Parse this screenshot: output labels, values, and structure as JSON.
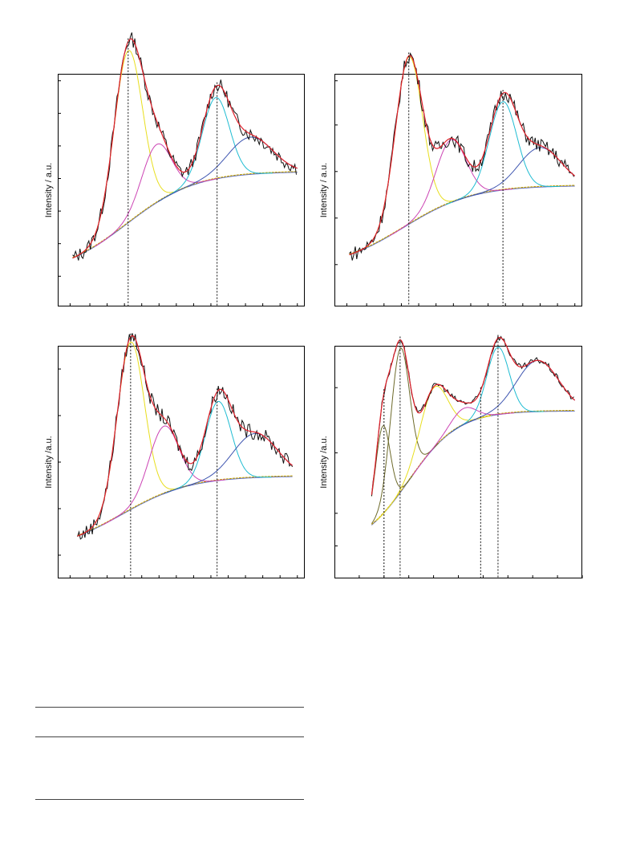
{
  "colors": {
    "raw": "#111111",
    "fit": "#e0202a",
    "baseline": "#5a6cc8",
    "baseline_alt": "#c8a400",
    "yellow": "#e8de1e",
    "magenta": "#cc44b4",
    "cyan": "#1fbcd2",
    "blue": "#3e55b0",
    "olive": "#6d6a2a",
    "axis": "#000000"
  },
  "panels": [
    {
      "ylabel": "Intensity / a.u.",
      "chart_data": {
        "type": "line",
        "xlim": [
          0,
          100
        ],
        "ylim": [
          0,
          100
        ],
        "xticks": [
          5,
          13,
          20,
          27,
          34,
          41,
          48,
          55,
          62,
          69,
          76,
          83,
          90,
          97
        ],
        "yticks": [
          13,
          27,
          41,
          55,
          69,
          83,
          97
        ],
        "vlines": [
          28.5,
          64.5
        ],
        "noise": 3.0,
        "baseline": {
          "y0": 13,
          "y1": 58,
          "xs": 6,
          "xe": 97,
          "mid": 28,
          "w": 14
        },
        "components": [
          {
            "name": "yellow",
            "c": 28.5,
            "h": 74,
            "w": 5.8
          },
          {
            "name": "magenta",
            "c": 40,
            "h": 25,
            "w": 6
          },
          {
            "name": "cyan",
            "c": 64,
            "h": 35,
            "w": 5.5
          },
          {
            "name": "blue",
            "c": 78,
            "h": 16,
            "w": 9
          }
        ]
      }
    },
    {
      "ylabel": "Intensity / a.u.",
      "chart_data": {
        "type": "line",
        "xlim": [
          0,
          100
        ],
        "ylim": [
          0,
          100
        ],
        "xticks": [
          5,
          13,
          20,
          27,
          34,
          41,
          48,
          55,
          62,
          69,
          76,
          83,
          90,
          97
        ],
        "yticks": [
          18,
          38,
          58,
          78,
          97
        ],
        "vlines": [
          30,
          68
        ],
        "noise": 3.2,
        "baseline": {
          "y0": 16,
          "y1": 52,
          "xs": 6,
          "xe": 97,
          "mid": 28,
          "w": 14
        },
        "components": [
          {
            "name": "yellow",
            "c": 30,
            "h": 72,
            "w": 5.5
          },
          {
            "name": "magenta",
            "c": 47,
            "h": 27,
            "w": 6
          },
          {
            "name": "cyan",
            "c": 68,
            "h": 38,
            "w": 5.5
          },
          {
            "name": "blue",
            "c": 83,
            "h": 17,
            "w": 8.5
          }
        ]
      }
    },
    {
      "ylabel": "Intensity /a.u.",
      "chart_data": {
        "type": "line",
        "xlim": [
          0,
          100
        ],
        "ylim": [
          0,
          100
        ],
        "xticks": [
          5,
          13,
          20,
          27,
          34,
          41,
          48,
          55,
          62,
          69,
          76,
          83,
          90,
          97
        ],
        "yticks": [
          10,
          30,
          50,
          70,
          90
        ],
        "vlines": [
          29.5,
          64.5
        ],
        "noise": 3.2,
        "baseline": {
          "y0": 11,
          "y1": 44,
          "xs": 8,
          "xe": 95,
          "mid": 26,
          "w": 14
        },
        "components": [
          {
            "name": "yellow",
            "c": 29.5,
            "h": 72,
            "w": 5.5
          },
          {
            "name": "magenta",
            "c": 43,
            "h": 29,
            "w": 6
          },
          {
            "name": "cyan",
            "c": 65,
            "h": 34,
            "w": 5.2
          },
          {
            "name": "blue",
            "c": 80,
            "h": 19,
            "w": 9
          }
        ]
      }
    },
    {
      "ylabel": "Intensity /a.u.",
      "chart_data": {
        "type": "line",
        "xlim": [
          0,
          100
        ],
        "ylim": [
          0,
          100
        ],
        "xticks": [
          10,
          20,
          30,
          40,
          50,
          60,
          70,
          80,
          90,
          100
        ],
        "yticks": [
          14,
          28,
          54,
          82
        ],
        "vlines": [
          20,
          26.5,
          59,
          66
        ],
        "noise": 1.3,
        "baseline": {
          "y0": 12,
          "y1": 72,
          "xs": 15,
          "xe": 97,
          "mid": 30,
          "w": 10
        },
        "components": [
          {
            "name": "olive",
            "c": 19.5,
            "h": 38,
            "w": 3
          },
          {
            "name": "olive",
            "c": 26.5,
            "h": 62,
            "w": 3.8
          },
          {
            "name": "yellow",
            "c": 40,
            "h": 26,
            "w": 5.5
          },
          {
            "name": "magenta",
            "c": 52,
            "h": 7,
            "w": 5
          },
          {
            "name": "cyan",
            "c": 66,
            "h": 29,
            "w": 4.5
          },
          {
            "name": "blue",
            "c": 82,
            "h": 22,
            "w": 8.5
          }
        ]
      }
    }
  ]
}
